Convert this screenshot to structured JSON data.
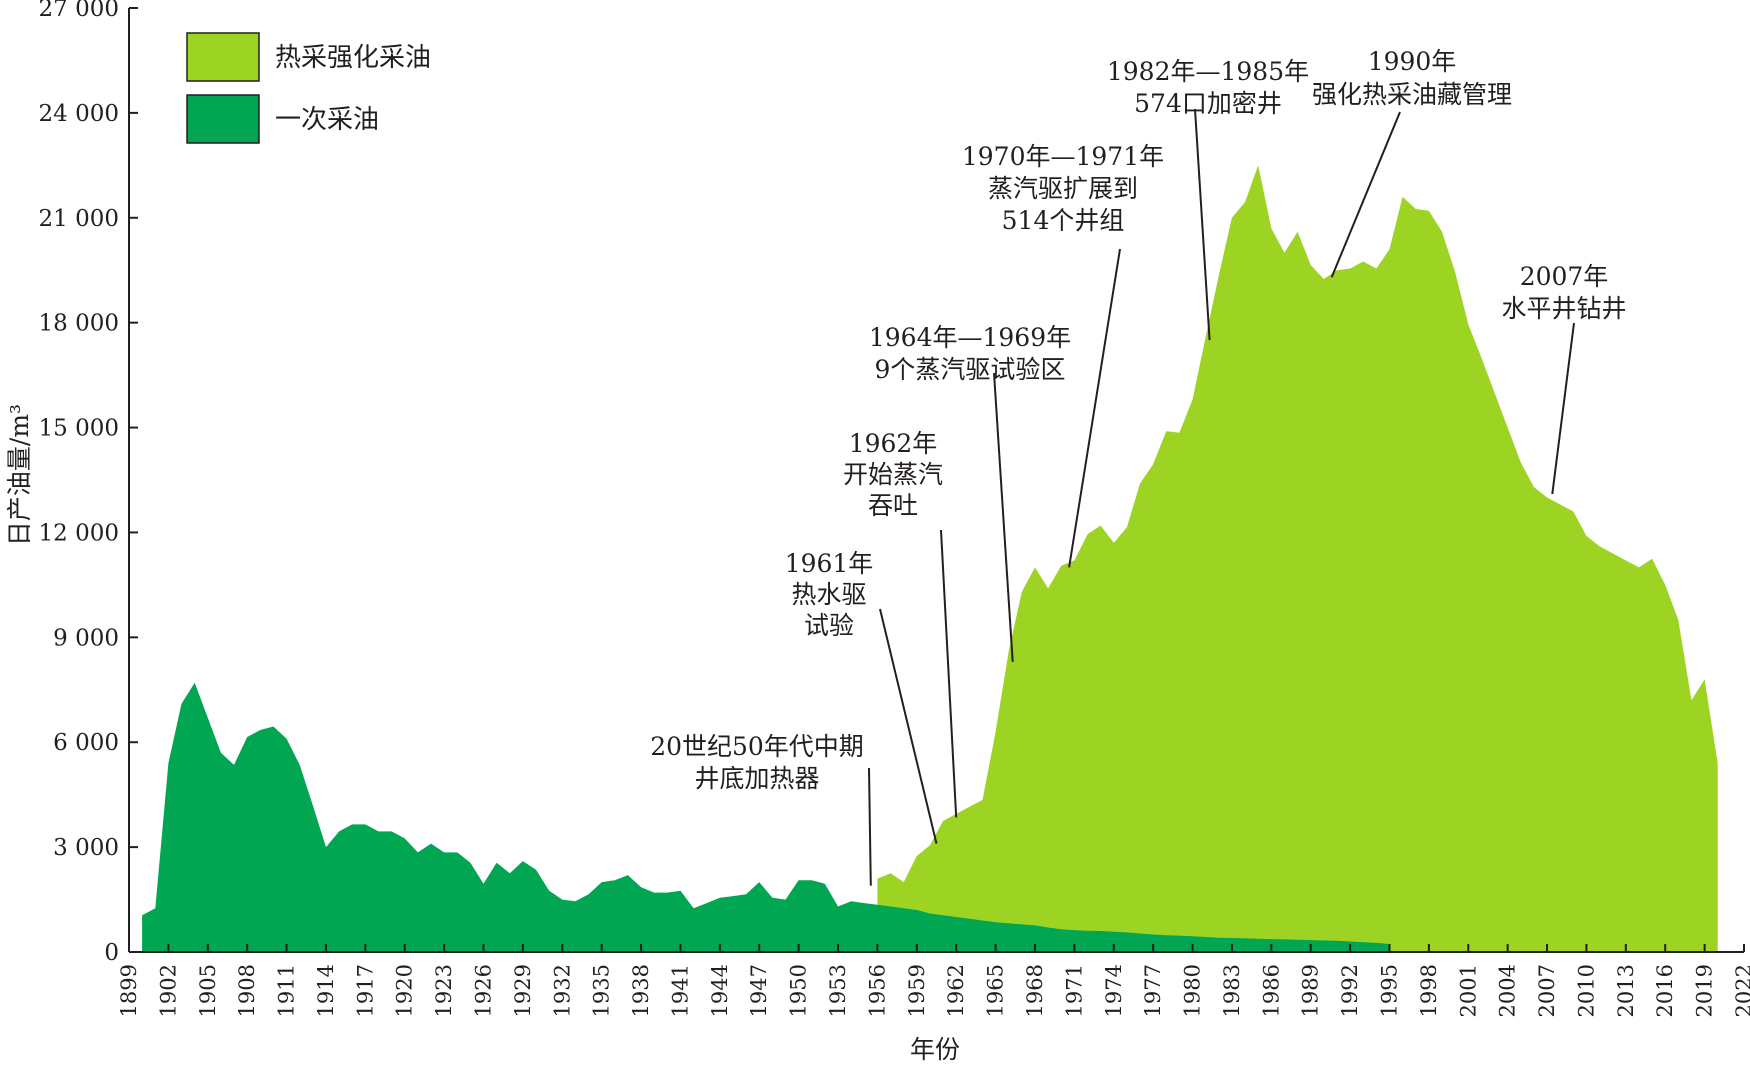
{
  "chart_data": {
    "type": "area",
    "title": "",
    "xlabel": "年份",
    "ylabel": "日产油量/m³",
    "xlim": [
      1899,
      2022
    ],
    "ylim": [
      0,
      27000
    ],
    "x_ticks": [
      "1899",
      "1902",
      "1905",
      "1908",
      "1911",
      "1914",
      "1917",
      "1920",
      "1923",
      "1926",
      "1929",
      "1932",
      "1935",
      "1938",
      "1941",
      "1944",
      "1947",
      "1950",
      "1953",
      "1956",
      "1959",
      "1962",
      "1965",
      "1968",
      "1971",
      "1974",
      "1977",
      "1980",
      "1983",
      "1986",
      "1989",
      "1992",
      "1995",
      "1998",
      "2001",
      "2004",
      "2007",
      "2010",
      "2013",
      "2016",
      "2019",
      "2022"
    ],
    "y_ticks": [
      "0",
      "3 000",
      "6 000",
      "9 000",
      "12 000",
      "15 000",
      "18 000",
      "21 000",
      "24 000",
      "27 000"
    ],
    "legend_position": "top-left",
    "colors": {
      "thermal": "#9dd423",
      "primary": "#00a651",
      "axis": "#231f20"
    },
    "series": [
      {
        "name": "热采强化采油",
        "color": "#9dd423",
        "points": [
          [
            1956,
            2100
          ],
          [
            1957,
            2250
          ],
          [
            1958,
            2000
          ],
          [
            1959,
            2750
          ],
          [
            1960,
            3050
          ],
          [
            1961,
            3750
          ],
          [
            1962,
            3950
          ],
          [
            1963,
            4150
          ],
          [
            1964,
            4350
          ],
          [
            1965,
            6300
          ],
          [
            1966,
            8600
          ],
          [
            1967,
            10300
          ],
          [
            1968,
            11000
          ],
          [
            1969,
            10400
          ],
          [
            1970,
            11050
          ],
          [
            1971,
            11200
          ],
          [
            1972,
            11950
          ],
          [
            1973,
            12200
          ],
          [
            1974,
            11700
          ],
          [
            1975,
            12150
          ],
          [
            1976,
            13400
          ],
          [
            1977,
            13950
          ],
          [
            1978,
            14900
          ],
          [
            1979,
            14850
          ],
          [
            1980,
            15800
          ],
          [
            1981,
            17600
          ],
          [
            1982,
            19350
          ],
          [
            1983,
            21000
          ],
          [
            1984,
            21450
          ],
          [
            1985,
            22500
          ],
          [
            1986,
            20700
          ],
          [
            1987,
            20000
          ],
          [
            1988,
            20600
          ],
          [
            1989,
            19650
          ],
          [
            1990,
            19250
          ],
          [
            1991,
            19500
          ],
          [
            1992,
            19550
          ],
          [
            1993,
            19750
          ],
          [
            1994,
            19550
          ],
          [
            1995,
            20100
          ],
          [
            1996,
            21600
          ],
          [
            1997,
            21250
          ],
          [
            1998,
            21200
          ],
          [
            1999,
            20600
          ],
          [
            2000,
            19450
          ],
          [
            2001,
            17950
          ],
          [
            2002,
            17000
          ],
          [
            2003,
            16000
          ],
          [
            2004,
            15000
          ],
          [
            2005,
            14000
          ],
          [
            2006,
            13300
          ],
          [
            2007,
            13000
          ],
          [
            2008,
            12800
          ],
          [
            2009,
            12600
          ],
          [
            2010,
            11900
          ],
          [
            2011,
            11600
          ],
          [
            2012,
            11400
          ],
          [
            2013,
            11200
          ],
          [
            2014,
            11000
          ],
          [
            2015,
            11250
          ],
          [
            2016,
            10500
          ],
          [
            2017,
            9500
          ],
          [
            2018,
            7200
          ],
          [
            2019,
            7800
          ],
          [
            2020,
            5400
          ]
        ]
      },
      {
        "name": "一次采油",
        "color": "#00a651",
        "points": [
          [
            1900,
            1050
          ],
          [
            1901,
            1250
          ],
          [
            1902,
            5400
          ],
          [
            1903,
            7100
          ],
          [
            1904,
            7700
          ],
          [
            1905,
            6700
          ],
          [
            1906,
            5700
          ],
          [
            1907,
            5350
          ],
          [
            1908,
            6150
          ],
          [
            1909,
            6350
          ],
          [
            1910,
            6450
          ],
          [
            1911,
            6100
          ],
          [
            1912,
            5350
          ],
          [
            1913,
            4200
          ],
          [
            1914,
            3000
          ],
          [
            1915,
            3450
          ],
          [
            1916,
            3650
          ],
          [
            1917,
            3650
          ],
          [
            1918,
            3450
          ],
          [
            1919,
            3450
          ],
          [
            1920,
            3250
          ],
          [
            1921,
            2850
          ],
          [
            1922,
            3100
          ],
          [
            1923,
            2850
          ],
          [
            1924,
            2850
          ],
          [
            1925,
            2550
          ],
          [
            1926,
            1950
          ],
          [
            1927,
            2550
          ],
          [
            1928,
            2250
          ],
          [
            1929,
            2600
          ],
          [
            1930,
            2350
          ],
          [
            1931,
            1750
          ],
          [
            1932,
            1500
          ],
          [
            1933,
            1450
          ],
          [
            1934,
            1650
          ],
          [
            1935,
            2000
          ],
          [
            1936,
            2050
          ],
          [
            1937,
            2200
          ],
          [
            1938,
            1850
          ],
          [
            1939,
            1700
          ],
          [
            1940,
            1700
          ],
          [
            1941,
            1750
          ],
          [
            1942,
            1250
          ],
          [
            1943,
            1400
          ],
          [
            1944,
            1550
          ],
          [
            1945,
            1600
          ],
          [
            1946,
            1650
          ],
          [
            1947,
            2000
          ],
          [
            1948,
            1550
          ],
          [
            1949,
            1500
          ],
          [
            1950,
            2050
          ],
          [
            1951,
            2050
          ],
          [
            1952,
            1950
          ],
          [
            1953,
            1300
          ],
          [
            1954,
            1450
          ],
          [
            1955,
            1400
          ],
          [
            1956,
            1350
          ],
          [
            1957,
            1300
          ],
          [
            1958,
            1250
          ],
          [
            1959,
            1200
          ],
          [
            1960,
            1100
          ],
          [
            1961,
            1050
          ],
          [
            1962,
            1000
          ],
          [
            1963,
            950
          ],
          [
            1964,
            900
          ],
          [
            1965,
            850
          ],
          [
            1966,
            820
          ],
          [
            1967,
            790
          ],
          [
            1968,
            760
          ],
          [
            1969,
            700
          ],
          [
            1970,
            650
          ],
          [
            1971,
            620
          ],
          [
            1972,
            610
          ],
          [
            1973,
            600
          ],
          [
            1974,
            580
          ],
          [
            1975,
            560
          ],
          [
            1976,
            530
          ],
          [
            1977,
            500
          ],
          [
            1978,
            480
          ],
          [
            1979,
            470
          ],
          [
            1980,
            450
          ],
          [
            1981,
            430
          ],
          [
            1982,
            410
          ],
          [
            1983,
            400
          ],
          [
            1984,
            390
          ],
          [
            1985,
            380
          ],
          [
            1986,
            370
          ],
          [
            1987,
            360
          ],
          [
            1988,
            350
          ],
          [
            1989,
            340
          ],
          [
            1990,
            330
          ],
          [
            1991,
            320
          ],
          [
            1992,
            300
          ],
          [
            1993,
            280
          ],
          [
            1994,
            260
          ],
          [
            1995,
            230
          ]
        ]
      }
    ],
    "annotations": [
      {
        "lines": [
          "20世纪50年代中期",
          "井底加热器"
        ],
        "point": [
          1955.5,
          1900
        ]
      },
      {
        "lines": [
          "1961年",
          "热水驱",
          "试验"
        ],
        "point": [
          1960.5,
          3100
        ]
      },
      {
        "lines": [
          "1962年",
          "开始蒸汽",
          "吞吐"
        ],
        "point": [
          1962,
          3850
        ]
      },
      {
        "lines": [
          "1964年—1969年",
          "9个蒸汽驱试验区"
        ],
        "point": [
          1966.3,
          8300
        ]
      },
      {
        "lines": [
          "1970年—1971年",
          "蒸汽驱扩展到",
          "514个井组"
        ],
        "point": [
          1970.6,
          11000
        ]
      },
      {
        "lines": [
          "1982年—1985年",
          "574口加密井"
        ],
        "point": [
          1981.3,
          17500
        ]
      },
      {
        "lines": [
          "1990年",
          "强化热采油藏管理"
        ],
        "point": [
          1990.6,
          19300
        ]
      },
      {
        "lines": [
          "2007年",
          "水平井钻井"
        ],
        "point": [
          2007.4,
          13100
        ]
      }
    ]
  }
}
